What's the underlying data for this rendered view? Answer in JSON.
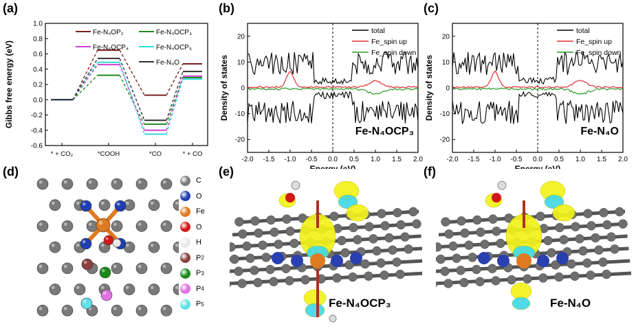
{
  "panels": {
    "a": "(a)",
    "b": "(b)",
    "c": "(c)",
    "d": "(d)",
    "e": "(e)",
    "f": "(f)"
  },
  "chart_data": [
    {
      "id": "a",
      "type": "line",
      "title": "",
      "xlabel": "",
      "ylabel": "Gibbs free energy (eV)",
      "ylim": [
        -0.6,
        1.0
      ],
      "yticks": [
        "1.0",
        "0.8",
        "0.6",
        "0.4",
        "0.2",
        "0.0",
        "-0.2",
        "-0.4",
        "-0.6"
      ],
      "categories": [
        "* + CO₂",
        "*COOH",
        "*CO",
        "* + CO"
      ],
      "series": [
        {
          "name": "Fe-N₄OP₂",
          "color": "#7a1f1f",
          "values": [
            0.0,
            0.65,
            0.06,
            0.47
          ]
        },
        {
          "name": "Fe-N₄OCP₃",
          "color": "#1e8a1e",
          "values": [
            0.0,
            0.32,
            -0.32,
            0.29
          ]
        },
        {
          "name": "Fe-N₄OCP₄",
          "color": "#d040d0",
          "values": [
            0.0,
            0.46,
            -0.4,
            0.31
          ]
        },
        {
          "name": "Fe-N₄OCP₅",
          "color": "#30d8e0",
          "values": [
            0.0,
            0.49,
            -0.45,
            0.27
          ]
        },
        {
          "name": "Fe-N₄O",
          "color": "#303030",
          "values": [
            0.0,
            0.54,
            -0.27,
            0.37
          ]
        }
      ],
      "legend_position": "top"
    },
    {
      "id": "b",
      "type": "line",
      "xlabel": "Energy (eV)",
      "ylabel": "Density of states",
      "xlim": [
        -2.0,
        2.0
      ],
      "ylim": [
        -25,
        25
      ],
      "xticks": [
        "-2.0",
        "-1.5",
        "-1.0",
        "-0.5",
        "0.0",
        "0.5",
        "1.0",
        "1.5",
        "2.0"
      ],
      "yticks": [
        "20",
        "10",
        "0",
        "-10",
        "-20"
      ],
      "label": "Fe-N₄OCP₃",
      "series": [
        {
          "name": "total",
          "color": "#000000"
        },
        {
          "name": "Fe_spin up",
          "color": "#e03030"
        },
        {
          "name": "Fe_spin down",
          "color": "#2a9a2a"
        }
      ],
      "legend_position": "top-right"
    },
    {
      "id": "c",
      "type": "line",
      "xlabel": "Energy (eV)",
      "ylabel": "Density of states",
      "xlim": [
        -2.0,
        2.0
      ],
      "ylim": [
        -25,
        25
      ],
      "xticks": [
        "-2.0",
        "-1.5",
        "-1.0",
        "-0.5",
        "0.0",
        "0.5",
        "1.0",
        "1.5",
        "2.0"
      ],
      "yticks": [
        "20",
        "10",
        "0",
        "-10",
        "-20"
      ],
      "label": "Fe-N₄O",
      "series": [
        {
          "name": "total",
          "color": "#000000"
        },
        {
          "name": "Fe_spin up",
          "color": "#e03030"
        },
        {
          "name": "Fe_spin down",
          "color": "#2a9a2a"
        }
      ],
      "legend_position": "top-right"
    }
  ],
  "atom_legend": [
    {
      "label": "C",
      "sub": "",
      "color": "#7a7a7a"
    },
    {
      "label": "O",
      "sub": "",
      "color": "#1f3fb0"
    },
    {
      "label": "Fe",
      "sub": "",
      "color": "#e07a20"
    },
    {
      "label": "O",
      "sub": "",
      "color": "#d01818"
    },
    {
      "label": "H",
      "sub": "",
      "color": "#e8e8e8"
    },
    {
      "label": "P",
      "sub": "2",
      "color": "#8a4040"
    },
    {
      "label": "P",
      "sub": "3",
      "color": "#1a8a1a"
    },
    {
      "label": "P",
      "sub": "4",
      "color": "#e070e0"
    },
    {
      "label": "P",
      "sub": "5",
      "color": "#60e0e8"
    }
  ],
  "structure_labels": {
    "e": "Fe-N₄OCP₃",
    "f": "Fe-N₄O"
  }
}
